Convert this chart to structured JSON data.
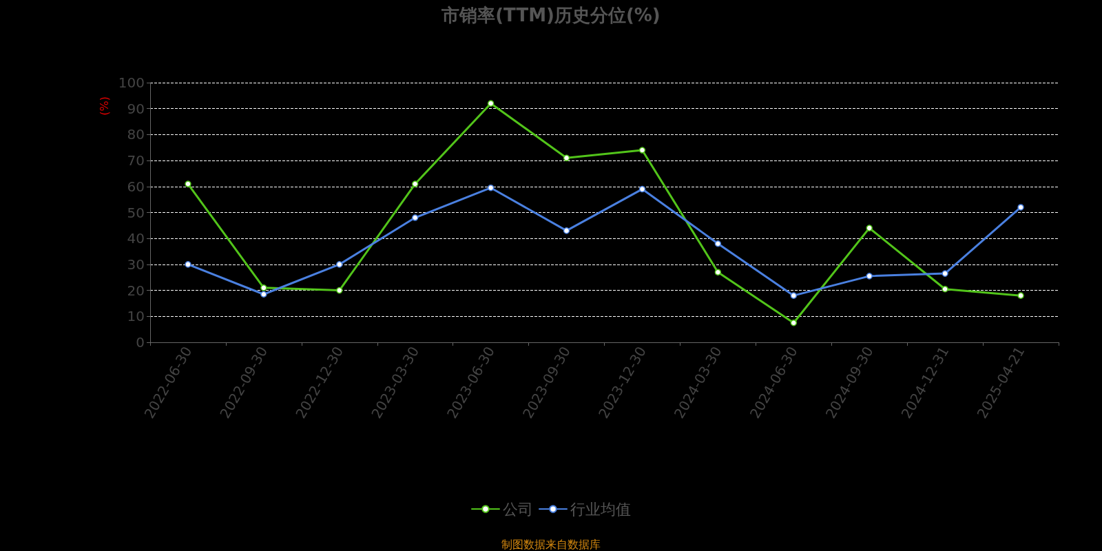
{
  "chart_data": {
    "type": "line",
    "title": "市销率(TTM)历史分位(%)",
    "ylabel": "(%)",
    "categories": [
      "2022-06-30",
      "2022-09-30",
      "2022-12-30",
      "2023-03-30",
      "2023-06-30",
      "2023-09-30",
      "2023-12-30",
      "2024-03-30",
      "2024-06-30",
      "2024-09-30",
      "2024-12-31",
      "2025-04-21"
    ],
    "series": [
      {
        "name": "公司",
        "color": "#52c41a",
        "values": [
          61,
          21,
          20,
          61,
          92,
          71,
          74,
          27,
          7.5,
          44,
          20.5,
          18
        ]
      },
      {
        "name": "行业均值",
        "color": "#4a80e0",
        "values": [
          30,
          18.5,
          30,
          48,
          59.5,
          43,
          59,
          38,
          18,
          25.5,
          26.5,
          52
        ]
      }
    ],
    "ylim": [
      0,
      100
    ],
    "yticks": [
      0,
      10,
      20,
      30,
      40,
      50,
      60,
      70,
      80,
      90,
      100
    ],
    "grid": "y",
    "legend": "bottom",
    "marker": "circle",
    "line_style": "solid",
    "annotations": [
      "制图数据来自数据库"
    ]
  }
}
